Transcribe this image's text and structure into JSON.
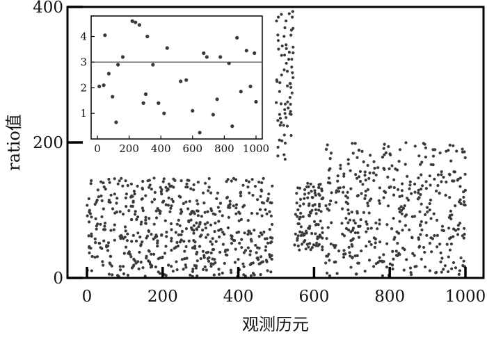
{
  "chart_data": [
    {
      "type": "scatter",
      "role": "main",
      "xlabel": "观测历元",
      "ylabel": "ratio值",
      "xlim": [
        0,
        1000
      ],
      "ylim": [
        0,
        400
      ],
      "x_ticks": [
        "0",
        "200",
        "400",
        "600",
        "800",
        "1000"
      ],
      "y_ticks": [
        "0",
        "200",
        "400"
      ],
      "point_color": "#3a3a3a",
      "segments": [
        {
          "x_range": [
            0,
            490
          ],
          "y_range": [
            2,
            148
          ],
          "count": 560
        },
        {
          "x_range": [
            500,
            545
          ],
          "y_range": [
            170,
            395
          ],
          "count": 70
        },
        {
          "x_range": [
            548,
            625
          ],
          "y_range": [
            40,
            140
          ],
          "count": 110
        },
        {
          "x_range": [
            630,
            1000
          ],
          "y_range": [
            2,
            200
          ],
          "count": 420
        }
      ]
    },
    {
      "type": "scatter",
      "role": "inset",
      "xlim": [
        0,
        1000
      ],
      "ylim": [
        0,
        4.8
      ],
      "x_ticks": [
        "0",
        "200",
        "400",
        "600",
        "800",
        "1000"
      ],
      "y_ticks": [
        "1",
        "2",
        "3",
        "4"
      ],
      "reference_line": 3,
      "point_color": "#3a3a3a",
      "points": [
        [
          12,
          2.05
        ],
        [
          40,
          2.1
        ],
        [
          48,
          4.05
        ],
        [
          72,
          2.55
        ],
        [
          95,
          1.65
        ],
        [
          118,
          0.65
        ],
        [
          130,
          2.9
        ],
        [
          160,
          3.2
        ],
        [
          220,
          4.6
        ],
        [
          240,
          4.55
        ],
        [
          265,
          4.45
        ],
        [
          290,
          1.4
        ],
        [
          305,
          1.75
        ],
        [
          315,
          4.0
        ],
        [
          350,
          2.9
        ],
        [
          385,
          1.4
        ],
        [
          420,
          1.0
        ],
        [
          440,
          3.55
        ],
        [
          525,
          2.25
        ],
        [
          560,
          2.3
        ],
        [
          600,
          1.1
        ],
        [
          645,
          0.25
        ],
        [
          670,
          3.35
        ],
        [
          690,
          3.2
        ],
        [
          730,
          0.95
        ],
        [
          755,
          1.55
        ],
        [
          775,
          3.2
        ],
        [
          830,
          2.95
        ],
        [
          850,
          0.5
        ],
        [
          880,
          3.95
        ],
        [
          905,
          1.85
        ],
        [
          940,
          3.45
        ],
        [
          965,
          2.05
        ],
        [
          990,
          3.35
        ],
        [
          1000,
          1.45
        ]
      ]
    }
  ]
}
